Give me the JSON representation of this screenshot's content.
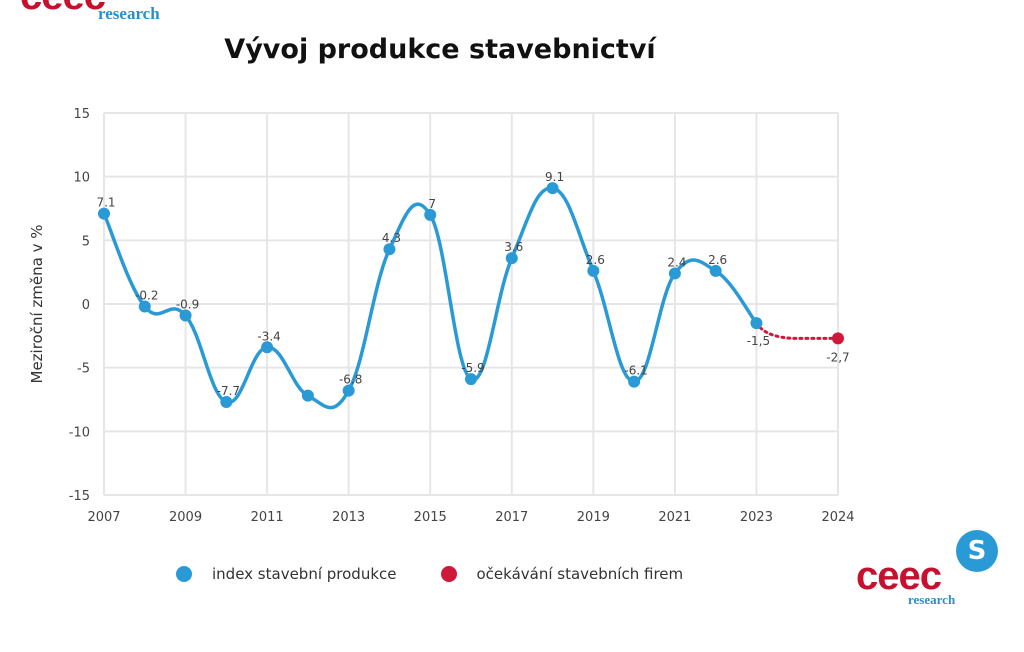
{
  "logos": {
    "top": {
      "brand": "ceec",
      "sub": "research"
    },
    "bottom": {
      "brand": "ceec",
      "sub": "research",
      "badge": "S"
    }
  },
  "colors": {
    "series1": "#2a9ad6",
    "series2": "#d0193a",
    "grid": "#e6e6e6",
    "text": "#444444"
  },
  "chart_data": {
    "type": "line",
    "title": "Vývoj produkce stavebnictví",
    "xlabel": "",
    "ylabel": "Meziroční změna v %",
    "ylim": [
      -15,
      15
    ],
    "yticks": [
      15,
      10,
      5,
      0,
      -5,
      -10,
      -15
    ],
    "xtick_labels": [
      "2007",
      "2009",
      "2011",
      "2013",
      "2015",
      "2017",
      "2019",
      "2021",
      "2023",
      "2024"
    ],
    "grid": true,
    "legend_position": "bottom",
    "series": [
      {
        "name": "index stavební produkce",
        "color": "#2a9ad6",
        "style": "solid-smooth",
        "x": [
          2007,
          2008,
          2009,
          2010,
          2011,
          2012,
          2013,
          2014,
          2015,
          2016,
          2017,
          2018,
          2019,
          2020,
          2021,
          2022,
          2023
        ],
        "values": [
          7.1,
          -0.2,
          -0.9,
          -7.7,
          -3.4,
          -7.2,
          -6.8,
          4.3,
          7,
          -5.9,
          3.6,
          9.1,
          2.6,
          -6.1,
          2.4,
          2.6,
          -1.5
        ],
        "labels": [
          "7.1",
          "-0.2",
          "-0.9",
          "-7.7",
          "-3.4",
          "",
          "-6.8",
          "4.3",
          "7",
          "-5.9",
          "3.6",
          "9.1",
          "2.6",
          "-6.1",
          "2.4",
          "2.6",
          "-1,5"
        ]
      },
      {
        "name": "očekávání stavebních firem",
        "color": "#d0193a",
        "style": "dotted",
        "x": [
          2023,
          2024
        ],
        "values": [
          -1.5,
          -2.7
        ],
        "labels": [
          "",
          "-2,7"
        ]
      }
    ]
  }
}
